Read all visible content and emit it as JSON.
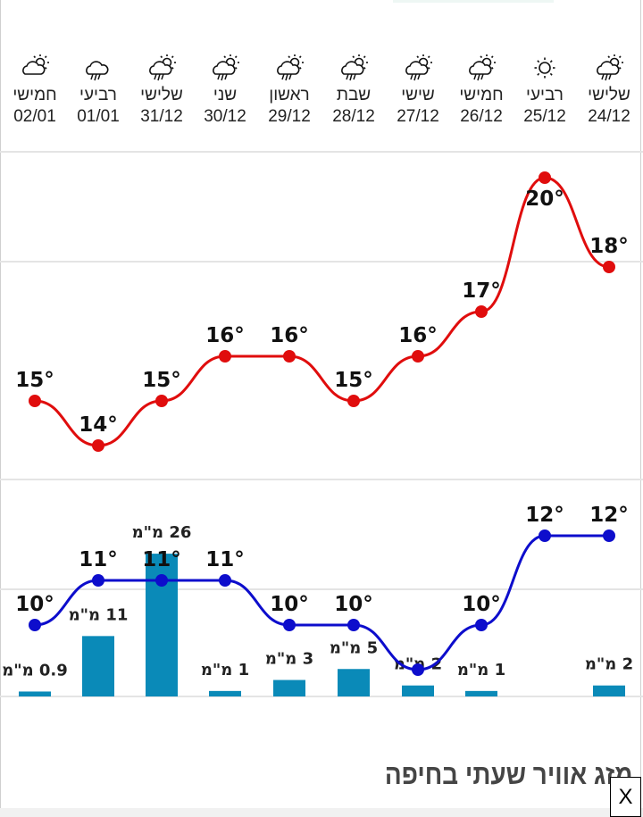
{
  "days": [
    {
      "name": "חמישי",
      "date": "02/01",
      "icon": "partly-cloudy-icon"
    },
    {
      "name": "רביעי",
      "date": "01/01",
      "icon": "rain-icon"
    },
    {
      "name": "שלישי",
      "date": "31/12",
      "icon": "sun-cloud-rain-icon"
    },
    {
      "name": "שני",
      "date": "30/12",
      "icon": "sun-cloud-rain-icon"
    },
    {
      "name": "ראשון",
      "date": "29/12",
      "icon": "sun-cloud-rain-icon"
    },
    {
      "name": "שבת",
      "date": "28/12",
      "icon": "sun-cloud-rain-icon"
    },
    {
      "name": "שישי",
      "date": "27/12",
      "icon": "sun-cloud-rain-icon"
    },
    {
      "name": "חמישי",
      "date": "26/12",
      "icon": "sun-cloud-rain-icon"
    },
    {
      "name": "רביעי",
      "date": "25/12",
      "icon": "sun-icon"
    },
    {
      "name": "שלישי",
      "date": "24/12",
      "icon": "sun-cloud-rain-icon"
    }
  ],
  "chart_data": {
    "type": "line",
    "categories": [
      "02/01",
      "01/01",
      "31/12",
      "30/12",
      "29/12",
      "28/12",
      "27/12",
      "26/12",
      "25/12",
      "24/12"
    ],
    "series": [
      {
        "name": "max_temp",
        "color": "#e00d0d",
        "values": [
          15,
          14,
          15,
          16,
          16,
          15,
          16,
          17,
          20,
          18
        ],
        "labels": [
          "15°",
          "14°",
          "15°",
          "16°",
          "16°",
          "15°",
          "16°",
          "17°",
          "20°",
          "18°"
        ]
      },
      {
        "name": "min_temp",
        "color": "#0d0dcc",
        "values": [
          10,
          11,
          11,
          11,
          10,
          10,
          9,
          10,
          12,
          12
        ],
        "labels": [
          "10°",
          "11°",
          "11°",
          "11°",
          "10°",
          "10°",
          null,
          "10°",
          "12°",
          "12°"
        ]
      },
      {
        "name": "precipitation_mm",
        "type": "bar",
        "color": "#0a8ab8",
        "values": [
          0.9,
          11,
          26,
          1,
          3,
          5,
          2,
          1,
          0,
          2
        ],
        "labels": [
          "0.9 מ\"מ",
          "11 מ\"מ",
          "26 מ\"מ",
          "1 מ\"מ",
          "3 מ\"מ",
          "5 מ\"מ",
          "2 מ\"מ",
          "1 מ\"מ",
          null,
          "2 מ\"מ"
        ]
      }
    ],
    "grid": true
  },
  "footer": {
    "title": "מזג אוויר שעתי בחיפה",
    "close_label": "X"
  }
}
